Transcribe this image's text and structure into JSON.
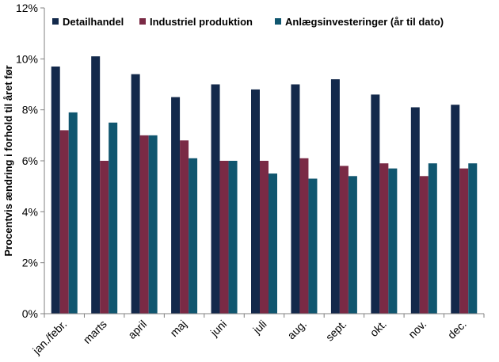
{
  "chart_data": {
    "type": "bar",
    "ylabel": "Procentvis ændring i forhold til året før",
    "xlabel": "",
    "ylim": [
      0,
      12
    ],
    "y_ticks": [
      "0%",
      "2%",
      "4%",
      "6%",
      "8%",
      "10%",
      "12%"
    ],
    "y_tick_values": [
      0,
      2,
      4,
      6,
      8,
      10,
      12
    ],
    "grid": false,
    "legend_position": "top",
    "categories": [
      "jan./febr.",
      "marts",
      "april",
      "maj",
      "juni",
      "juli",
      "aug.",
      "sept.",
      "okt.",
      "nov.",
      "dec."
    ],
    "series": [
      {
        "name": "Detailhandel",
        "color": "#13294b",
        "values": [
          9.7,
          10.1,
          9.4,
          8.5,
          9.0,
          8.8,
          9.0,
          9.2,
          8.6,
          8.1,
          8.2
        ]
      },
      {
        "name": "Industriel produktion",
        "color": "#7a2a45",
        "values": [
          7.2,
          6.0,
          7.0,
          6.8,
          6.0,
          6.0,
          6.1,
          5.8,
          5.9,
          5.4,
          5.7
        ]
      },
      {
        "name": "Anlægsinvesteringer (år til dato)",
        "color": "#10566f",
        "values": [
          7.9,
          7.5,
          7.0,
          6.1,
          6.0,
          5.5,
          5.3,
          5.4,
          5.7,
          5.9,
          5.9
        ]
      }
    ]
  }
}
